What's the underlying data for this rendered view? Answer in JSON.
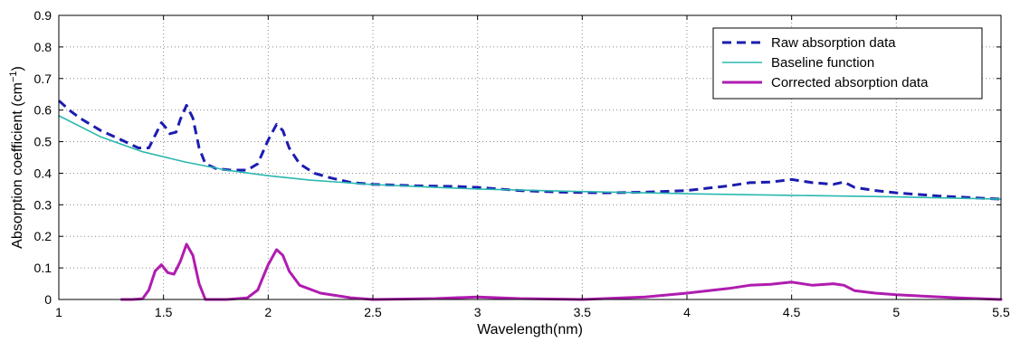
{
  "chart_data": {
    "type": "line",
    "xlabel": "Wavelength(nm)",
    "ylabel": "Absorption coefficient (cm",
    "ylabel_sup": "−1",
    "ylabel_close": ")",
    "xlim": [
      1,
      5.5
    ],
    "ylim": [
      0,
      0.9
    ],
    "xticks": [
      "1",
      "1.5",
      "2",
      "2.5",
      "3",
      "3.5",
      "4",
      "4.5",
      "5",
      "5.5"
    ],
    "yticks": [
      "0",
      "0.1",
      "0.2",
      "0.3",
      "0.4",
      "0.5",
      "0.6",
      "0.7",
      "0.8",
      "0.9"
    ],
    "grid": true,
    "legend_position": "top-right",
    "series": [
      {
        "name": "Raw absorption data",
        "color": "#1c1cb0",
        "style": "dashed",
        "x": [
          1.0,
          1.05,
          1.1,
          1.2,
          1.3,
          1.38,
          1.43,
          1.46,
          1.49,
          1.51,
          1.53,
          1.56,
          1.58,
          1.61,
          1.64,
          1.67,
          1.7,
          1.75,
          1.82,
          1.9,
          1.95,
          2.0,
          2.04,
          2.07,
          2.1,
          2.15,
          2.22,
          2.3,
          2.4,
          2.5,
          2.7,
          2.9,
          3.0,
          3.2,
          3.4,
          3.6,
          3.8,
          4.0,
          4.2,
          4.3,
          4.4,
          4.5,
          4.6,
          4.7,
          4.75,
          4.8,
          4.9,
          5.0,
          5.2,
          5.5
        ],
        "y": [
          0.63,
          0.6,
          0.575,
          0.535,
          0.505,
          0.48,
          0.48,
          0.52,
          0.56,
          0.545,
          0.525,
          0.53,
          0.57,
          0.615,
          0.575,
          0.48,
          0.43,
          0.415,
          0.41,
          0.41,
          0.43,
          0.505,
          0.555,
          0.535,
          0.48,
          0.43,
          0.4,
          0.385,
          0.37,
          0.365,
          0.36,
          0.358,
          0.355,
          0.345,
          0.34,
          0.338,
          0.34,
          0.345,
          0.36,
          0.37,
          0.372,
          0.38,
          0.37,
          0.365,
          0.372,
          0.355,
          0.345,
          0.338,
          0.328,
          0.318
        ]
      },
      {
        "name": "Baseline function",
        "color": "#2ab8b0",
        "style": "solid",
        "x": [
          1.0,
          1.2,
          1.4,
          1.6,
          1.8,
          2.0,
          2.2,
          2.5,
          2.8,
          3.0,
          3.5,
          4.0,
          4.5,
          5.0,
          5.5
        ],
        "y": [
          0.582,
          0.515,
          0.468,
          0.436,
          0.41,
          0.392,
          0.378,
          0.364,
          0.355,
          0.35,
          0.342,
          0.335,
          0.33,
          0.325,
          0.318
        ]
      },
      {
        "name": "Corrected absorption data",
        "color": "#b01cb0",
        "style": "solid",
        "x": [
          1.3,
          1.35,
          1.4,
          1.43,
          1.46,
          1.49,
          1.52,
          1.55,
          1.58,
          1.61,
          1.64,
          1.67,
          1.7,
          1.73,
          1.8,
          1.9,
          1.95,
          2.0,
          2.04,
          2.07,
          2.1,
          2.15,
          2.25,
          2.4,
          2.5,
          2.8,
          3.0,
          3.2,
          3.5,
          3.8,
          4.0,
          4.2,
          4.3,
          4.4,
          4.5,
          4.6,
          4.7,
          4.75,
          4.8,
          4.9,
          5.0,
          5.3,
          5.5
        ],
        "y": [
          0.0,
          0.0,
          0.002,
          0.03,
          0.09,
          0.11,
          0.085,
          0.08,
          0.12,
          0.175,
          0.14,
          0.05,
          0.0,
          0.0,
          0.0,
          0.005,
          0.03,
          0.11,
          0.158,
          0.14,
          0.09,
          0.045,
          0.02,
          0.005,
          0.0,
          0.003,
          0.008,
          0.003,
          0.0,
          0.008,
          0.02,
          0.035,
          0.045,
          0.048,
          0.055,
          0.045,
          0.05,
          0.045,
          0.028,
          0.02,
          0.015,
          0.005,
          0.0
        ]
      }
    ]
  }
}
